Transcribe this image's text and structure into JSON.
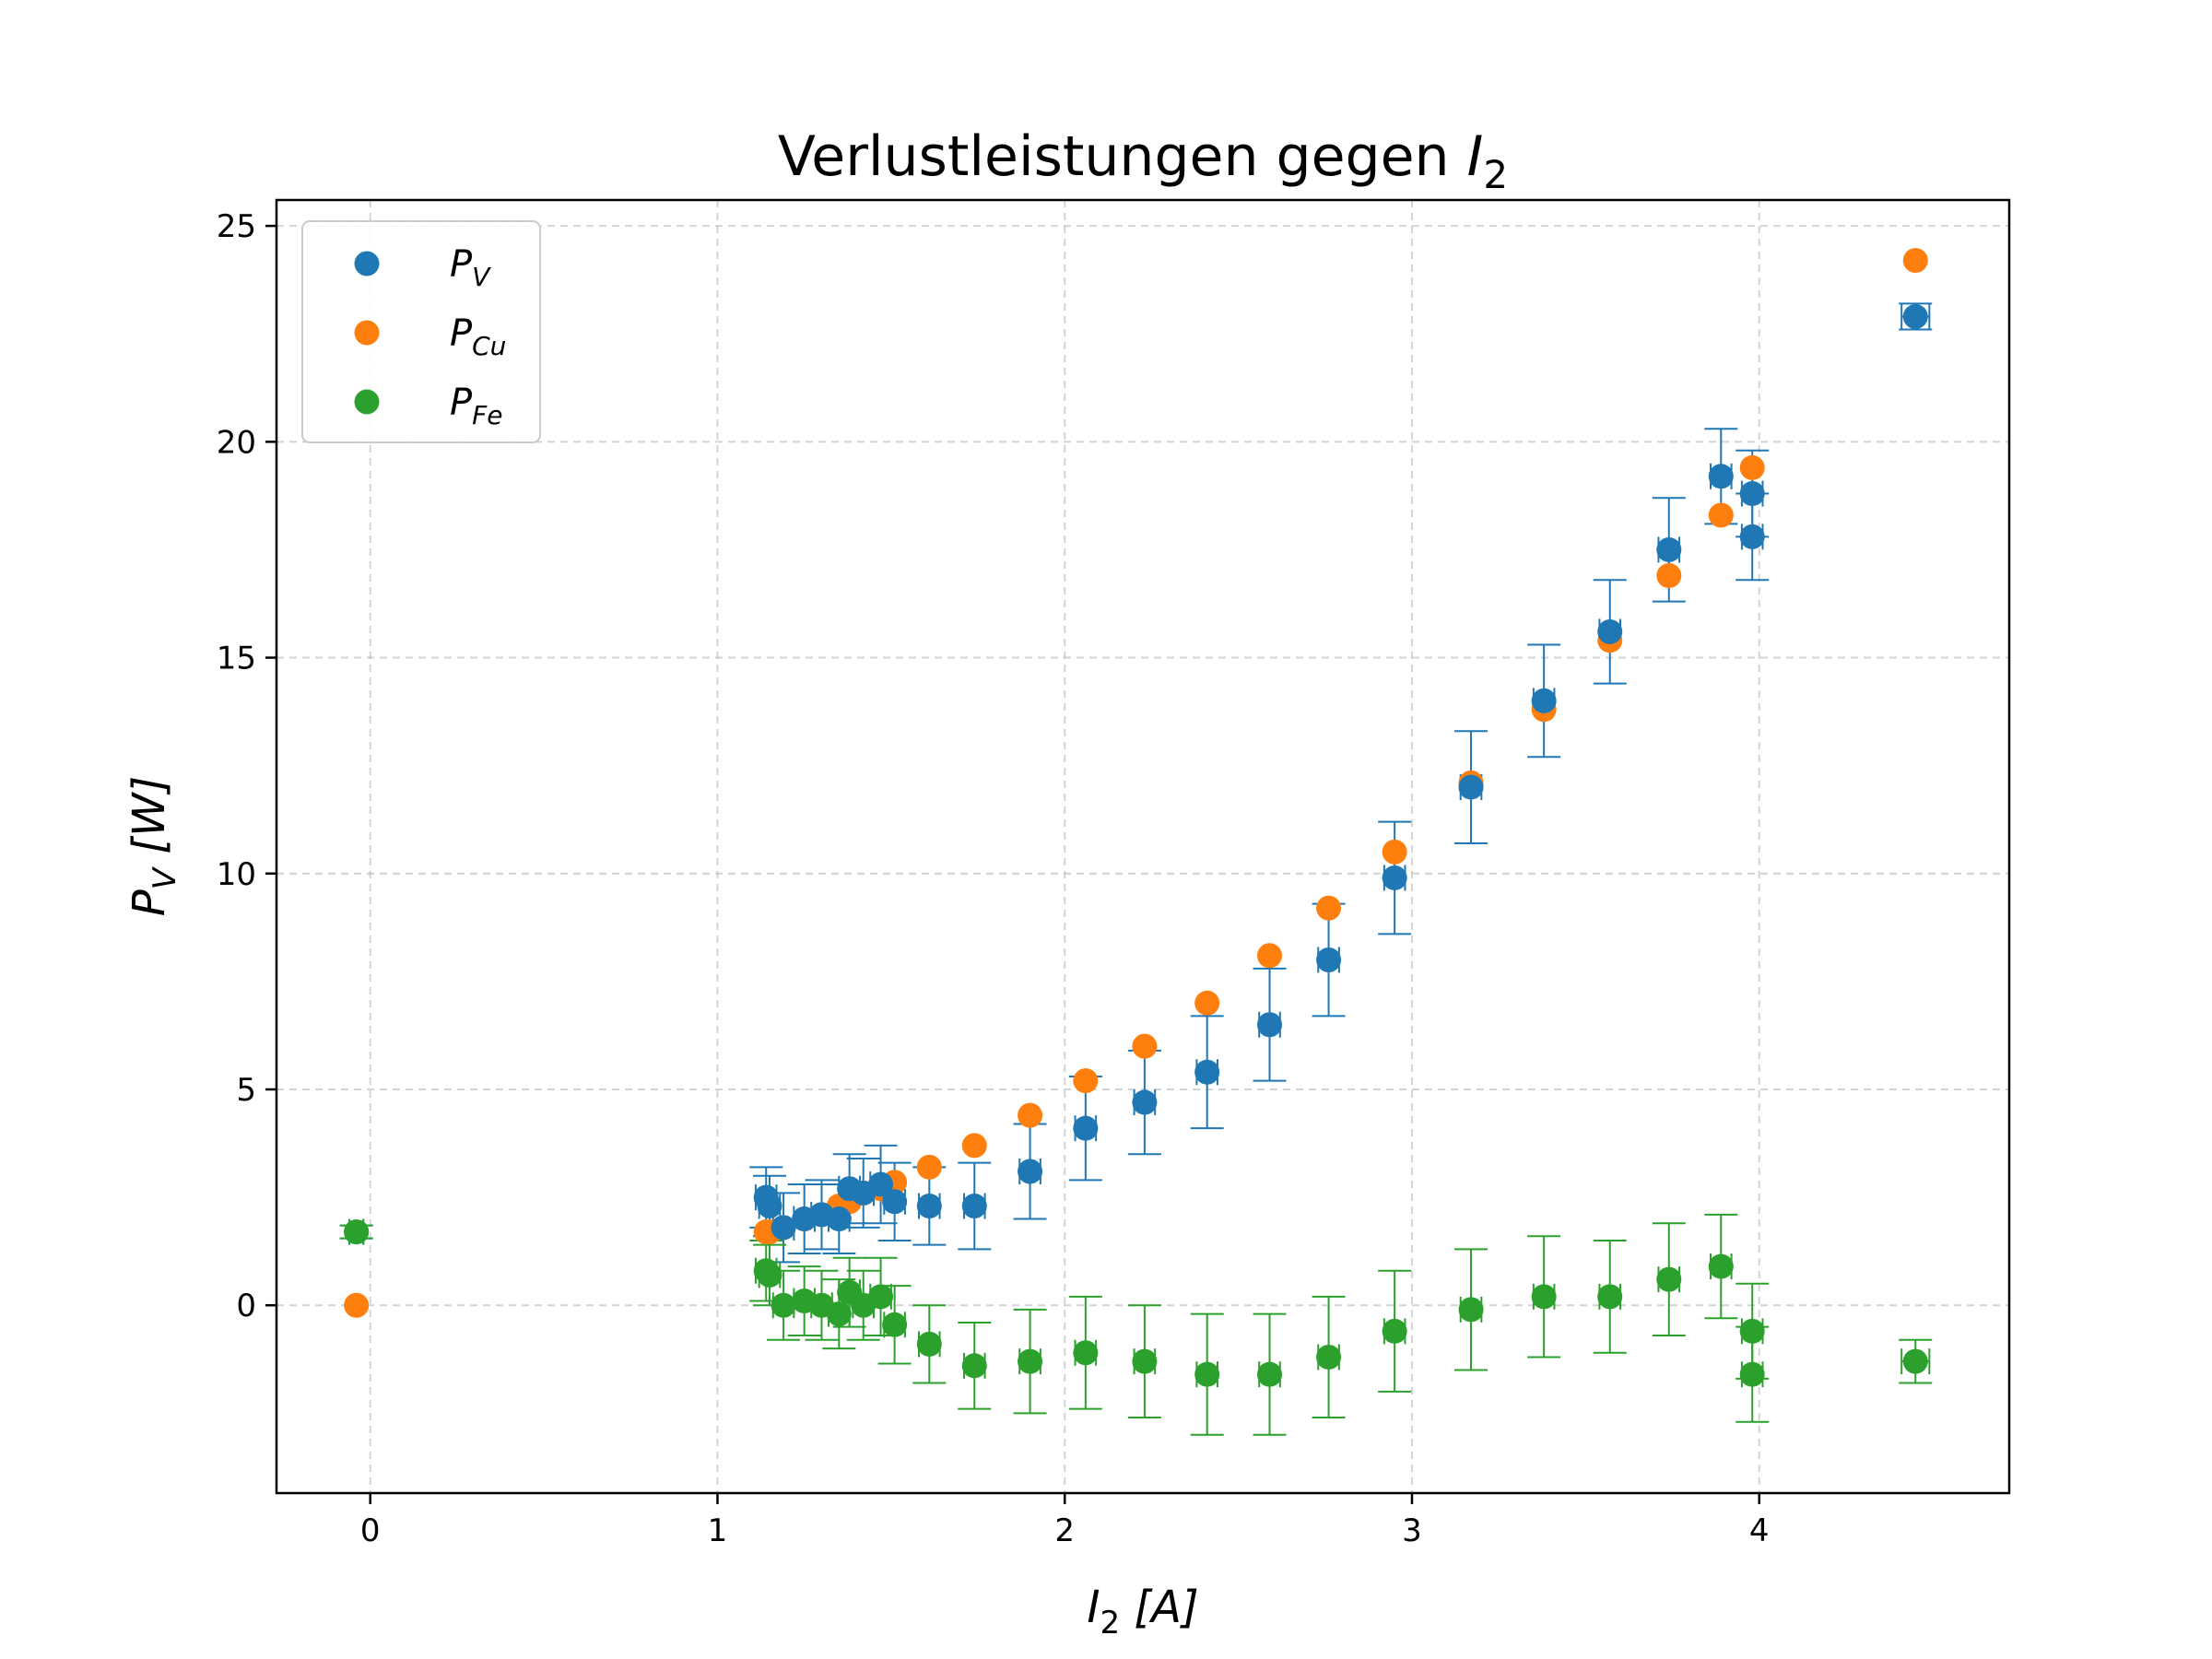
{
  "chart_data": {
    "type": "scatter",
    "title": {
      "text": "Verlustleistungen gegen ",
      "var": "I",
      "sub": "2"
    },
    "xlabel": {
      "var": "I",
      "sub": "2",
      "unit": " [A]"
    },
    "ylabel": {
      "var": "P",
      "sub": "V",
      "unit": " [W]"
    },
    "xlim": [
      -0.27,
      4.72
    ],
    "ylim": [
      -4.35,
      25.6
    ],
    "xticks": [
      0,
      1,
      2,
      3,
      4
    ],
    "yticks": [
      0,
      5,
      10,
      15,
      20,
      25
    ],
    "grid": true,
    "legend": "top-left",
    "colors": {
      "PV": "#1f77b4",
      "PCu": "#ff7f0e",
      "PFe": "#2ca02c"
    },
    "series": [
      {
        "key": "PV",
        "name": {
          "var": "P",
          "sub": "V"
        },
        "color": "#1f77b4",
        "points": [
          {
            "x": -0.04,
            "y": 1.7,
            "yerr": 0.15,
            "xerr": 0.02
          },
          {
            "x": 1.14,
            "y": 2.5,
            "yerr": 0.7,
            "xerr": 0.03
          },
          {
            "x": 1.15,
            "y": 2.3,
            "yerr": 0.7,
            "xerr": 0.03
          },
          {
            "x": 1.19,
            "y": 1.8,
            "yerr": 0.8,
            "xerr": 0.03
          },
          {
            "x": 1.25,
            "y": 2.0,
            "yerr": 0.8,
            "xerr": 0.03
          },
          {
            "x": 1.3,
            "y": 2.1,
            "yerr": 0.8,
            "xerr": 0.03
          },
          {
            "x": 1.35,
            "y": 2.0,
            "yerr": 0.8,
            "xerr": 0.03
          },
          {
            "x": 1.38,
            "y": 2.7,
            "yerr": 0.8,
            "xerr": 0.03
          },
          {
            "x": 1.42,
            "y": 2.6,
            "yerr": 0.8,
            "xerr": 0.03
          },
          {
            "x": 1.47,
            "y": 2.8,
            "yerr": 0.9,
            "xerr": 0.03
          },
          {
            "x": 1.51,
            "y": 2.4,
            "yerr": 0.9,
            "xerr": 0.03
          },
          {
            "x": 1.61,
            "y": 2.3,
            "yerr": 0.9,
            "xerr": 0.03
          },
          {
            "x": 1.74,
            "y": 2.3,
            "yerr": 1.0,
            "xerr": 0.03
          },
          {
            "x": 1.9,
            "y": 3.1,
            "yerr": 1.1,
            "xerr": 0.03
          },
          {
            "x": 2.06,
            "y": 4.1,
            "yerr": 1.2,
            "xerr": 0.03
          },
          {
            "x": 2.23,
            "y": 4.7,
            "yerr": 1.2,
            "xerr": 0.03
          },
          {
            "x": 2.41,
            "y": 5.4,
            "yerr": 1.3,
            "xerr": 0.03
          },
          {
            "x": 2.59,
            "y": 6.5,
            "yerr": 1.3,
            "xerr": 0.03
          },
          {
            "x": 2.76,
            "y": 8.0,
            "yerr": 1.3,
            "xerr": 0.03
          },
          {
            "x": 2.95,
            "y": 9.9,
            "yerr": 1.3,
            "xerr": 0.03
          },
          {
            "x": 3.17,
            "y": 12.0,
            "yerr": 1.3,
            "xerr": 0.03
          },
          {
            "x": 3.38,
            "y": 14.0,
            "yerr": 1.3,
            "xerr": 0.03
          },
          {
            "x": 3.57,
            "y": 15.6,
            "yerr": 1.2,
            "xerr": 0.03
          },
          {
            "x": 3.74,
            "y": 17.5,
            "yerr": 1.2,
            "xerr": 0.03
          },
          {
            "x": 3.89,
            "y": 19.2,
            "yerr": 1.1,
            "xerr": 0.03
          },
          {
            "x": 3.98,
            "y": 18.8,
            "yerr": 1.0,
            "xerr": 0.03
          },
          {
            "x": 3.98,
            "y": 17.8,
            "yerr": 1.0,
            "xerr": 0.03
          },
          {
            "x": 4.45,
            "y": 22.9,
            "yerr": 0.3,
            "xerr": 0.04
          }
        ]
      },
      {
        "key": "PCu",
        "name": {
          "var": "P",
          "sub": "Cu"
        },
        "color": "#ff7f0e",
        "points": [
          {
            "x": -0.04,
            "y": 0.0
          },
          {
            "x": 1.14,
            "y": 1.7
          },
          {
            "x": 1.15,
            "y": 1.7
          },
          {
            "x": 1.19,
            "y": 1.8
          },
          {
            "x": 1.25,
            "y": 2.0
          },
          {
            "x": 1.3,
            "y": 2.1
          },
          {
            "x": 1.35,
            "y": 2.3
          },
          {
            "x": 1.38,
            "y": 2.4
          },
          {
            "x": 1.42,
            "y": 2.6
          },
          {
            "x": 1.47,
            "y": 2.7
          },
          {
            "x": 1.51,
            "y": 2.85
          },
          {
            "x": 1.61,
            "y": 3.2
          },
          {
            "x": 1.74,
            "y": 3.7
          },
          {
            "x": 1.9,
            "y": 4.4
          },
          {
            "x": 2.06,
            "y": 5.2
          },
          {
            "x": 2.23,
            "y": 6.0
          },
          {
            "x": 2.41,
            "y": 7.0
          },
          {
            "x": 2.59,
            "y": 8.1
          },
          {
            "x": 2.76,
            "y": 9.2
          },
          {
            "x": 2.95,
            "y": 10.5
          },
          {
            "x": 3.17,
            "y": 12.1
          },
          {
            "x": 3.38,
            "y": 13.8
          },
          {
            "x": 3.57,
            "y": 15.4
          },
          {
            "x": 3.74,
            "y": 16.9
          },
          {
            "x": 3.89,
            "y": 18.3
          },
          {
            "x": 3.98,
            "y": 19.4
          },
          {
            "x": 4.45,
            "y": 24.2
          }
        ]
      },
      {
        "key": "PFe",
        "name": {
          "var": "P",
          "sub": "Fe"
        },
        "color": "#2ca02c",
        "points": [
          {
            "x": -0.04,
            "y": 1.7,
            "yerr": 0.15,
            "xerr": 0.02
          },
          {
            "x": 1.14,
            "y": 0.8,
            "yerr": 0.7,
            "xerr": 0.03
          },
          {
            "x": 1.15,
            "y": 0.7,
            "yerr": 0.7,
            "xerr": 0.03
          },
          {
            "x": 1.19,
            "y": 0.0,
            "yerr": 0.8,
            "xerr": 0.03
          },
          {
            "x": 1.25,
            "y": 0.1,
            "yerr": 0.8,
            "xerr": 0.03
          },
          {
            "x": 1.3,
            "y": 0.0,
            "yerr": 0.8,
            "xerr": 0.03
          },
          {
            "x": 1.35,
            "y": -0.2,
            "yerr": 0.8,
            "xerr": 0.03
          },
          {
            "x": 1.38,
            "y": 0.3,
            "yerr": 0.8,
            "xerr": 0.03
          },
          {
            "x": 1.42,
            "y": 0.0,
            "yerr": 0.8,
            "xerr": 0.03
          },
          {
            "x": 1.47,
            "y": 0.2,
            "yerr": 0.9,
            "xerr": 0.03
          },
          {
            "x": 1.51,
            "y": -0.45,
            "yerr": 0.9,
            "xerr": 0.03
          },
          {
            "x": 1.61,
            "y": -0.9,
            "yerr": 0.9,
            "xerr": 0.03
          },
          {
            "x": 1.74,
            "y": -1.4,
            "yerr": 1.0,
            "xerr": 0.03
          },
          {
            "x": 1.9,
            "y": -1.3,
            "yerr": 1.2,
            "xerr": 0.03
          },
          {
            "x": 2.06,
            "y": -1.1,
            "yerr": 1.3,
            "xerr": 0.03
          },
          {
            "x": 2.23,
            "y": -1.3,
            "yerr": 1.3,
            "xerr": 0.03
          },
          {
            "x": 2.41,
            "y": -1.6,
            "yerr": 1.4,
            "xerr": 0.03
          },
          {
            "x": 2.59,
            "y": -1.6,
            "yerr": 1.4,
            "xerr": 0.03
          },
          {
            "x": 2.76,
            "y": -1.2,
            "yerr": 1.4,
            "xerr": 0.03
          },
          {
            "x": 2.95,
            "y": -0.6,
            "yerr": 1.4,
            "xerr": 0.03
          },
          {
            "x": 3.17,
            "y": -0.1,
            "yerr": 1.4,
            "xerr": 0.03
          },
          {
            "x": 3.38,
            "y": 0.2,
            "yerr": 1.4,
            "xerr": 0.03
          },
          {
            "x": 3.57,
            "y": 0.2,
            "yerr": 1.3,
            "xerr": 0.03
          },
          {
            "x": 3.74,
            "y": 0.6,
            "yerr": 1.3,
            "xerr": 0.03
          },
          {
            "x": 3.89,
            "y": 0.9,
            "yerr": 1.2,
            "xerr": 0.03
          },
          {
            "x": 3.98,
            "y": -0.6,
            "yerr": 1.1,
            "xerr": 0.03
          },
          {
            "x": 3.98,
            "y": -1.6,
            "yerr": 1.1,
            "xerr": 0.03
          },
          {
            "x": 4.45,
            "y": -1.3,
            "yerr": 0.5,
            "xerr": 0.04
          }
        ]
      }
    ]
  }
}
